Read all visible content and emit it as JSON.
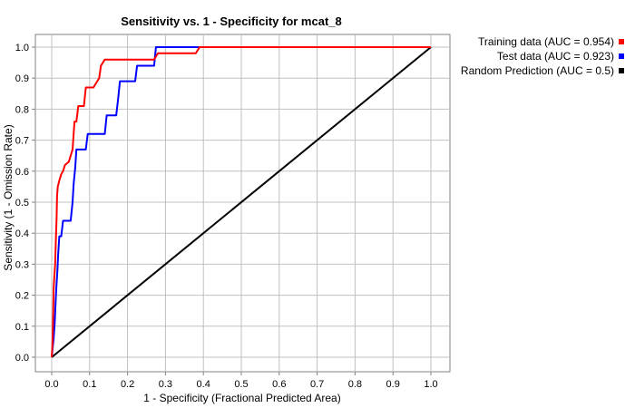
{
  "chart_data": {
    "type": "line",
    "title": "Sensitivity vs. 1 - Specificity for mcat_8",
    "xlabel": "1 - Specificity  (Fractional Predicted Area)",
    "ylabel": "Sensitivity  (1 - Omission Rate)",
    "xlim": [
      0,
      1
    ],
    "ylim": [
      0,
      1
    ],
    "x_ticks": [
      "0.0",
      "0.1",
      "0.2",
      "0.3",
      "0.4",
      "0.5",
      "0.6",
      "0.7",
      "0.8",
      "0.9",
      "1.0"
    ],
    "y_ticks": [
      "0.0",
      "0.1",
      "0.2",
      "0.3",
      "0.4",
      "0.5",
      "0.6",
      "0.7",
      "0.8",
      "0.9",
      "1.0"
    ],
    "grid": true,
    "legend_position": "outside-right-top",
    "series": [
      {
        "name": "Training data (AUC = 0.954)",
        "color": "#ff0000",
        "points": [
          [
            0,
            0
          ],
          [
            0.002,
            0.04
          ],
          [
            0.003,
            0.1
          ],
          [
            0.004,
            0.15
          ],
          [
            0.005,
            0.22
          ],
          [
            0.007,
            0.26
          ],
          [
            0.009,
            0.3
          ],
          [
            0.011,
            0.38
          ],
          [
            0.013,
            0.45
          ],
          [
            0.014,
            0.52
          ],
          [
            0.016,
            0.55
          ],
          [
            0.02,
            0.57
          ],
          [
            0.025,
            0.59
          ],
          [
            0.03,
            0.6
          ],
          [
            0.035,
            0.62
          ],
          [
            0.045,
            0.63
          ],
          [
            0.05,
            0.65
          ],
          [
            0.055,
            0.67
          ],
          [
            0.06,
            0.76
          ],
          [
            0.065,
            0.76
          ],
          [
            0.07,
            0.81
          ],
          [
            0.085,
            0.81
          ],
          [
            0.09,
            0.87
          ],
          [
            0.105,
            0.87
          ],
          [
            0.11,
            0.87
          ],
          [
            0.12,
            0.89
          ],
          [
            0.125,
            0.9
          ],
          [
            0.13,
            0.94
          ],
          [
            0.14,
            0.96
          ],
          [
            0.2,
            0.96
          ],
          [
            0.27,
            0.96
          ],
          [
            0.28,
            0.98
          ],
          [
            0.38,
            0.98
          ],
          [
            0.39,
            1.0
          ],
          [
            0.5,
            1.0
          ],
          [
            1.0,
            1.0
          ]
        ]
      },
      {
        "name": "Test data (AUC = 0.923)",
        "color": "#0000ff",
        "points": [
          [
            0,
            0
          ],
          [
            0.005,
            0.06
          ],
          [
            0.008,
            0.11
          ],
          [
            0.01,
            0.17
          ],
          [
            0.012,
            0.22
          ],
          [
            0.015,
            0.28
          ],
          [
            0.017,
            0.33
          ],
          [
            0.02,
            0.39
          ],
          [
            0.025,
            0.39
          ],
          [
            0.03,
            0.44
          ],
          [
            0.05,
            0.44
          ],
          [
            0.055,
            0.5
          ],
          [
            0.058,
            0.56
          ],
          [
            0.062,
            0.61
          ],
          [
            0.065,
            0.67
          ],
          [
            0.09,
            0.67
          ],
          [
            0.095,
            0.72
          ],
          [
            0.14,
            0.72
          ],
          [
            0.145,
            0.78
          ],
          [
            0.17,
            0.78
          ],
          [
            0.175,
            0.83
          ],
          [
            0.18,
            0.89
          ],
          [
            0.22,
            0.89
          ],
          [
            0.225,
            0.94
          ],
          [
            0.27,
            0.94
          ],
          [
            0.275,
            1.0
          ],
          [
            0.4,
            1.0
          ],
          [
            1.0,
            1.0
          ]
        ]
      },
      {
        "name": "Random Prediction (AUC = 0.5)",
        "color": "#000000",
        "points": [
          [
            0,
            0
          ],
          [
            1,
            1
          ]
        ]
      }
    ]
  }
}
